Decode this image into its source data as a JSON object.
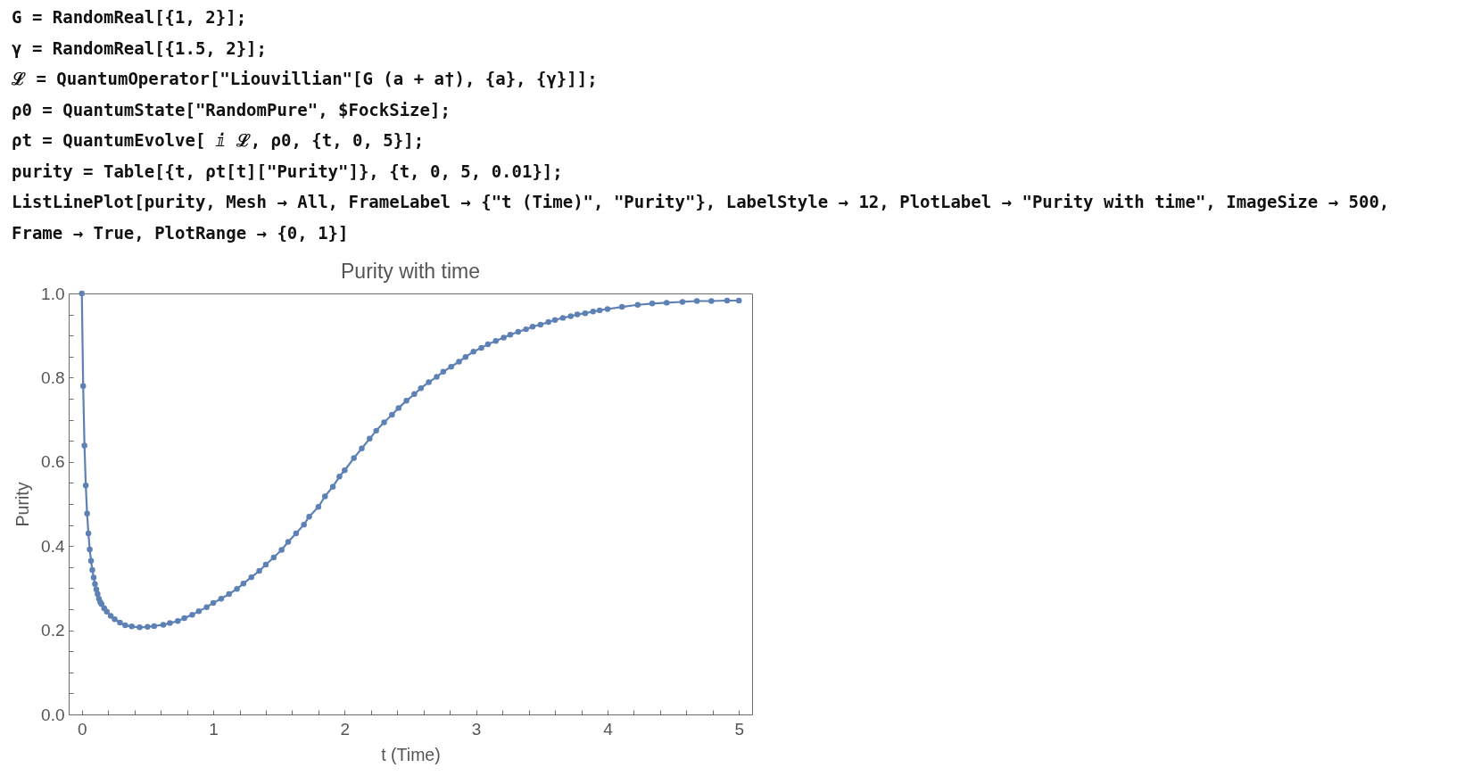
{
  "chart_data": {
    "type": "line",
    "title": "Purity with time",
    "xlabel": "t (Time)",
    "ylabel": "Purity",
    "annotations": [
      "G = RandomReal[{1, 2}];",
      "γ = RandomReal[{1.5, 2}];",
      "ℒ = QuantumOperator[\"Liouvillian\"[G (a + a†), {a}, {γ}]];",
      "ρ0 = QuantumState[\"RandomPure\", $FockSize];",
      "ρt = QuantumEvolve[ ⅈ ℒ, ρ0, {t, 0, 5}];",
      "purity = Table[{t, ρt[t][\"Purity\"]}, {t, 0, 5, 0.01}];",
      "ListLinePlot[purity, Mesh → All, FrameLabel → {\"t (Time)\", \"Purity\"}, LabelStyle → 12, PlotLabel → \"Purity with time\", ImageSize → 500,",
      "Frame → True, PlotRange → {0, 1}]"
    ],
    "marker": "circle",
    "line_style": "solid",
    "xlim": [
      -0.1,
      5.1
    ],
    "ylim": [
      0,
      1
    ],
    "xticks": [
      0,
      {
        "value": 0.2,
        "label": null
      },
      {
        "value": 0.4,
        "label": null
      },
      {
        "value": 0.6,
        "label": null
      },
      {
        "value": 0.8,
        "label": null
      },
      1,
      {
        "value": 1.2,
        "label": null
      },
      {
        "value": 1.4,
        "label": null
      },
      {
        "value": 1.6,
        "label": null
      },
      {
        "value": 1.8,
        "label": null
      },
      2,
      {
        "value": 2.2,
        "label": null
      },
      {
        "value": 2.4,
        "label": null
      },
      {
        "value": 2.6,
        "label": null
      },
      {
        "value": 2.8,
        "label": null
      },
      3,
      {
        "value": 3.2,
        "label": null
      },
      {
        "value": 3.4,
        "label": null
      },
      {
        "value": 3.6,
        "label": null
      },
      {
        "value": 3.8,
        "label": null
      },
      4,
      {
        "value": 4.2,
        "label": null
      },
      {
        "value": 4.4,
        "label": null
      },
      {
        "value": 4.6,
        "label": null
      },
      {
        "value": 4.8,
        "label": null
      },
      5
    ],
    "yticks": [
      {
        "value": 0,
        "label": "0.0"
      },
      {
        "value": 0.05,
        "label": null
      },
      {
        "value": 0.1,
        "label": null
      },
      {
        "value": 0.15,
        "label": null
      },
      0.2,
      {
        "value": 0.25,
        "label": null
      },
      {
        "value": 0.3,
        "label": null
      },
      {
        "value": 0.35,
        "label": null
      },
      0.4,
      {
        "value": 0.45,
        "label": null
      },
      {
        "value": 0.5,
        "label": null
      },
      {
        "value": 0.55,
        "label": null
      },
      0.6,
      {
        "value": 0.65,
        "label": null
      },
      {
        "value": 0.7,
        "label": null
      },
      {
        "value": 0.75,
        "label": null
      },
      0.8,
      {
        "value": 0.85,
        "label": null
      },
      {
        "value": 0.9,
        "label": null
      },
      {
        "value": 0.95,
        "label": null
      },
      {
        "value": 1,
        "label": "1.0"
      }
    ],
    "series": [
      {
        "color": "#5e81b5",
        "x": [
          0,
          0.01,
          0.02,
          0.03,
          0.04,
          0.05,
          0.06,
          0.07,
          0.08,
          0.09,
          0.1,
          0.11,
          0.12,
          0.13,
          0.14,
          0.15,
          0.17,
          0.19,
          0.22,
          0.25,
          0.29,
          0.33,
          0.38,
          0.44,
          0.5,
          0.55,
          0.62,
          0.67,
          0.73,
          0.78,
          0.84,
          0.89,
          0.95,
          1.0,
          1.06,
          1.12,
          1.18,
          1.23,
          1.29,
          1.35,
          1.4,
          1.46,
          1.52,
          1.57,
          1.63,
          1.69,
          1.73,
          1.8,
          1.85,
          1.91,
          1.96,
          2.0,
          2.07,
          2.13,
          2.19,
          2.24,
          2.3,
          2.36,
          2.41,
          2.47,
          2.53,
          2.58,
          2.64,
          2.7,
          2.75,
          2.81,
          2.87,
          2.92,
          2.98,
          3.04,
          3.09,
          3.15,
          3.21,
          3.26,
          3.32,
          3.38,
          3.43,
          3.49,
          3.55,
          3.6,
          3.66,
          3.72,
          3.77,
          3.83,
          3.89,
          3.94,
          4.0,
          4.11,
          4.23,
          4.34,
          4.45,
          4.57,
          4.68,
          4.79,
          4.91,
          5.0
        ],
        "values": [
          1.0,
          0.78,
          0.639,
          0.544,
          0.477,
          0.43,
          0.392,
          0.365,
          0.343,
          0.325,
          0.31,
          0.297,
          0.286,
          0.275,
          0.267,
          0.262,
          0.252,
          0.244,
          0.234,
          0.226,
          0.218,
          0.212,
          0.209,
          0.207,
          0.208,
          0.21,
          0.213,
          0.217,
          0.222,
          0.229,
          0.237,
          0.245,
          0.255,
          0.265,
          0.275,
          0.286,
          0.298,
          0.311,
          0.326,
          0.341,
          0.356,
          0.373,
          0.391,
          0.41,
          0.43,
          0.451,
          0.47,
          0.493,
          0.518,
          0.541,
          0.565,
          0.58,
          0.609,
          0.632,
          0.655,
          0.674,
          0.694,
          0.712,
          0.728,
          0.745,
          0.761,
          0.775,
          0.789,
          0.802,
          0.814,
          0.826,
          0.838,
          0.849,
          0.862,
          0.871,
          0.879,
          0.887,
          0.895,
          0.902,
          0.909,
          0.915,
          0.921,
          0.926,
          0.932,
          0.937,
          0.942,
          0.946,
          0.95,
          0.953,
          0.957,
          0.96,
          0.963,
          0.968,
          0.973,
          0.976,
          0.978,
          0.98,
          0.982,
          0.982,
          0.983,
          0.983
        ]
      }
    ]
  }
}
